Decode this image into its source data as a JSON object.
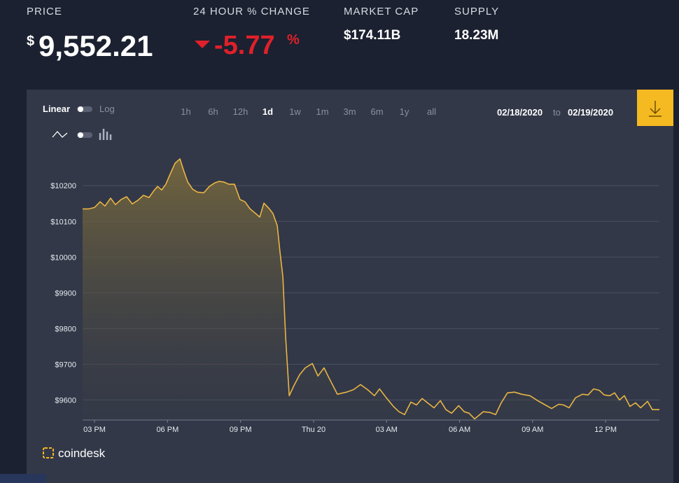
{
  "header": {
    "price_label": "PRICE",
    "price_currency": "$",
    "price": "9,552.21",
    "change_label": "24 HOUR % CHANGE",
    "change": "-5.77",
    "change_unit": "%",
    "market_cap_label": "MARKET CAP",
    "market_cap": "$174.11B",
    "supply_label": "SUPPLY",
    "supply": "18.23M"
  },
  "controls": {
    "linear": "Linear",
    "log": "Log",
    "ranges": [
      "1h",
      "6h",
      "12h",
      "1d",
      "1w",
      "1m",
      "3m",
      "6m",
      "1y",
      "all"
    ],
    "date_from": "02/18/2020",
    "date_to_label": "to",
    "date_to": "02/19/2020"
  },
  "brand": "coindesk",
  "chart_data": {
    "type": "line",
    "color": "#e9b543",
    "log_scale": false,
    "grid": true,
    "x": [
      14.51,
      14.77,
      15,
      15.23,
      15.43,
      15.66,
      15.86,
      16.09,
      16.32,
      16.55,
      16.78,
      17.01,
      17.24,
      17.44,
      17.59,
      17.76,
      17.93,
      18.11,
      18.31,
      18.51,
      18.65,
      18.83,
      19.03,
      19.23,
      19.49,
      19.72,
      19.95,
      20.12,
      20.32,
      20.52,
      20.75,
      20.98,
      21.18,
      21.39,
      21.62,
      21.79,
      21.96,
      22.16,
      22.33,
      22.51,
      22.62,
      22.74,
      22.85,
      23.0,
      23.2,
      23.43,
      23.66,
      23.95,
      24.18,
      24.43,
      24.64,
      24.98,
      25.35,
      25.64,
      25.93,
      26.22,
      26.5,
      26.71,
      26.99,
      27.28,
      27.51,
      27.74,
      28.0,
      28.23,
      28.46,
      28.72,
      28.95,
      29.21,
      29.44,
      29.67,
      29.96,
      30.19,
      30.39,
      30.62,
      30.97,
      31.25,
      31.48,
      31.71,
      31.97,
      32.26,
      32.55,
      32.89,
      33.21,
      33.47,
      33.78,
      34.07,
      34.27,
      34.5,
      34.76,
      35.05,
      35.28,
      35.51,
      35.74,
      35.94,
      36.17,
      36.37,
      36.57,
      36.77,
      37.0,
      37.23,
      37.44,
      37.72,
      37.92,
      38.21
    ],
    "values": [
      10135,
      10135,
      10139,
      10155,
      10143,
      10165,
      10147,
      10161,
      10169,
      10149,
      10159,
      10173,
      10167,
      10186,
      10198,
      10188,
      10204,
      10233,
      10263,
      10275,
      10245,
      10210,
      10190,
      10182,
      10180,
      10198,
      10208,
      10212,
      10210,
      10204,
      10204,
      10161,
      10155,
      10135,
      10122,
      10112,
      10151,
      10137,
      10122,
      10088,
      10014,
      9945,
      9778,
      9612,
      9641,
      9671,
      9690,
      9702,
      9667,
      9690,
      9661,
      9616,
      9622,
      9629,
      9643,
      9629,
      9612,
      9631,
      9606,
      9582,
      9567,
      9559,
      9594,
      9586,
      9604,
      9590,
      9578,
      9598,
      9573,
      9563,
      9584,
      9567,
      9563,
      9547,
      9567,
      9565,
      9559,
      9592,
      9620,
      9622,
      9616,
      9612,
      9598,
      9588,
      9576,
      9588,
      9586,
      9578,
      9606,
      9616,
      9614,
      9631,
      9627,
      9614,
      9612,
      9620,
      9600,
      9612,
      9582,
      9592,
      9578,
      9596,
      9573,
      9573
    ],
    "xlim": [
      14.51,
      38.21
    ],
    "xticks": [
      {
        "value": 15,
        "label": "03 PM"
      },
      {
        "value": 18,
        "label": "06 PM"
      },
      {
        "value": 21,
        "label": "09 PM"
      },
      {
        "value": 24,
        "label": "Thu 20"
      },
      {
        "value": 27,
        "label": "03 AM"
      },
      {
        "value": 30,
        "label": "06 AM"
      },
      {
        "value": 33,
        "label": "09 AM"
      },
      {
        "value": 36,
        "label": "12 PM"
      }
    ],
    "ylim": [
      9540,
      10320
    ],
    "yticks": [
      {
        "value": 9600,
        "label": "$9600"
      },
      {
        "value": 9700,
        "label": "$9700"
      },
      {
        "value": 9800,
        "label": "$9800"
      },
      {
        "value": 9900,
        "label": "$9900"
      },
      {
        "value": 10000,
        "label": "$10000"
      },
      {
        "value": 10100,
        "label": "$10100"
      },
      {
        "value": 10200,
        "label": "$10200"
      }
    ]
  }
}
